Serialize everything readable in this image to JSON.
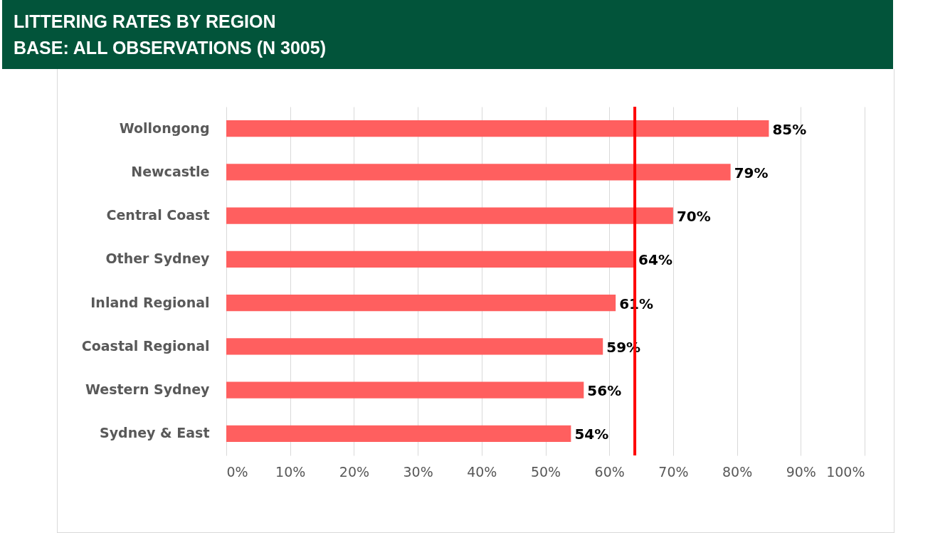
{
  "chart_data": {
    "type": "bar",
    "orientation": "horizontal",
    "title": "LITTERING RATES BY REGION",
    "subtitle": "BASE: ALL OBSERVATIONS (N  3005)",
    "categories": [
      "Wollongong",
      "Newcastle",
      "Central Coast",
      "Other Sydney",
      "Inland Regional",
      "Coastal Regional",
      "Western Sydney",
      "Sydney & East"
    ],
    "values": [
      85,
      79,
      70,
      64,
      61,
      59,
      56,
      54
    ],
    "value_labels": [
      "85%",
      "79%",
      "70%",
      "64%",
      "61%",
      "59%",
      "56%",
      "54%"
    ],
    "color": "#ff5f5f",
    "xlim": [
      0,
      100
    ],
    "xticks": [
      {
        "value": 0,
        "label": "0%"
      },
      {
        "value": 10,
        "label": "10%"
      },
      {
        "value": 20,
        "label": "20%"
      },
      {
        "value": 30,
        "label": "30%"
      },
      {
        "value": 40,
        "label": "40%"
      },
      {
        "value": 50,
        "label": "50%"
      },
      {
        "value": 60,
        "label": "60%"
      },
      {
        "value": 70,
        "label": "70%"
      },
      {
        "value": 80,
        "label": "80%"
      },
      {
        "value": 90,
        "label": "90%"
      },
      {
        "value": 100,
        "label": "100%"
      }
    ],
    "grid": "x",
    "ref_lines": [
      {
        "axis": "x",
        "value": 64,
        "color": "#ff0000"
      }
    ]
  }
}
